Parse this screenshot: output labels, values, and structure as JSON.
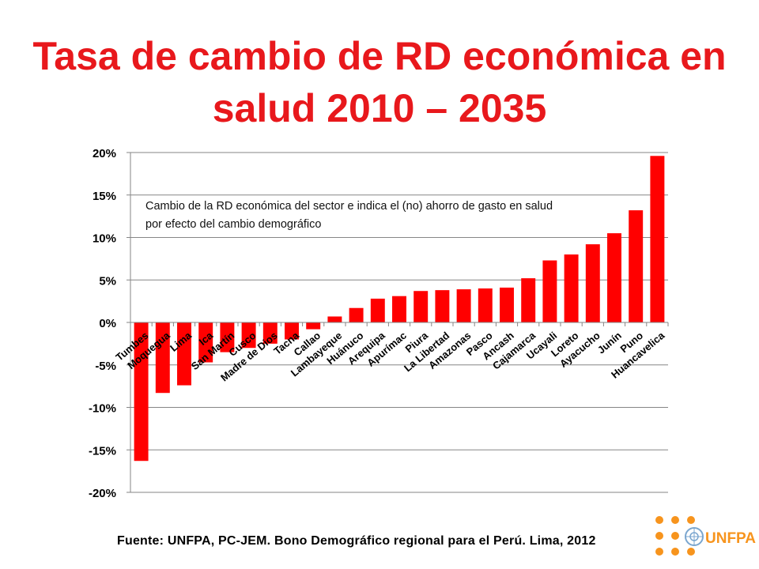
{
  "title": {
    "line1": "Tasa de cambio de RD económica en",
    "line2": "salud 2010 – 2035"
  },
  "note": {
    "line1": "Cambio de la RD económica del sector e indica el (no) ahorro de gasto en salud",
    "line2": "por efecto del cambio demográfico"
  },
  "source": "Fuente: UNFPA, PC-JEM. Bono Demográfico regional para el Perú. Lima, 2012",
  "logo": {
    "text": "UNFPA",
    "color": "#f7941d"
  },
  "colors": {
    "bar": "#ff0000",
    "title": "#e8181c",
    "grid": "#868686"
  },
  "chart_data": {
    "type": "bar",
    "categories": [
      "Tumbes",
      "Moquegua",
      "Lima",
      "Ica",
      "San Martín",
      "Cusco",
      "Madre de Dios",
      "Tacna",
      "Callao",
      "Lambayeque",
      "Huánuco",
      "Arequipa",
      "Apurímac",
      "Piura",
      "La Libertad",
      "Amazonas",
      "Pasco",
      "Ancash",
      "Cajamarca",
      "Ucayali",
      "Loreto",
      "Ayacucho",
      "Junín",
      "Puno",
      "Huancavelica"
    ],
    "values": [
      -16.3,
      -8.3,
      -7.4,
      -4.7,
      -3.5,
      -3.0,
      -2.5,
      -2.0,
      -0.8,
      0.7,
      1.7,
      2.8,
      3.1,
      3.7,
      3.8,
      3.9,
      4.0,
      4.1,
      5.2,
      7.3,
      8.0,
      9.2,
      10.5,
      13.2,
      19.6
    ],
    "yticks": [
      "20%",
      "15%",
      "10%",
      "5%",
      "0%",
      "-5%",
      "-10%",
      "-15%",
      "-20%"
    ],
    "ylim": [
      -20,
      20
    ],
    "grid": true,
    "legend": "none"
  }
}
